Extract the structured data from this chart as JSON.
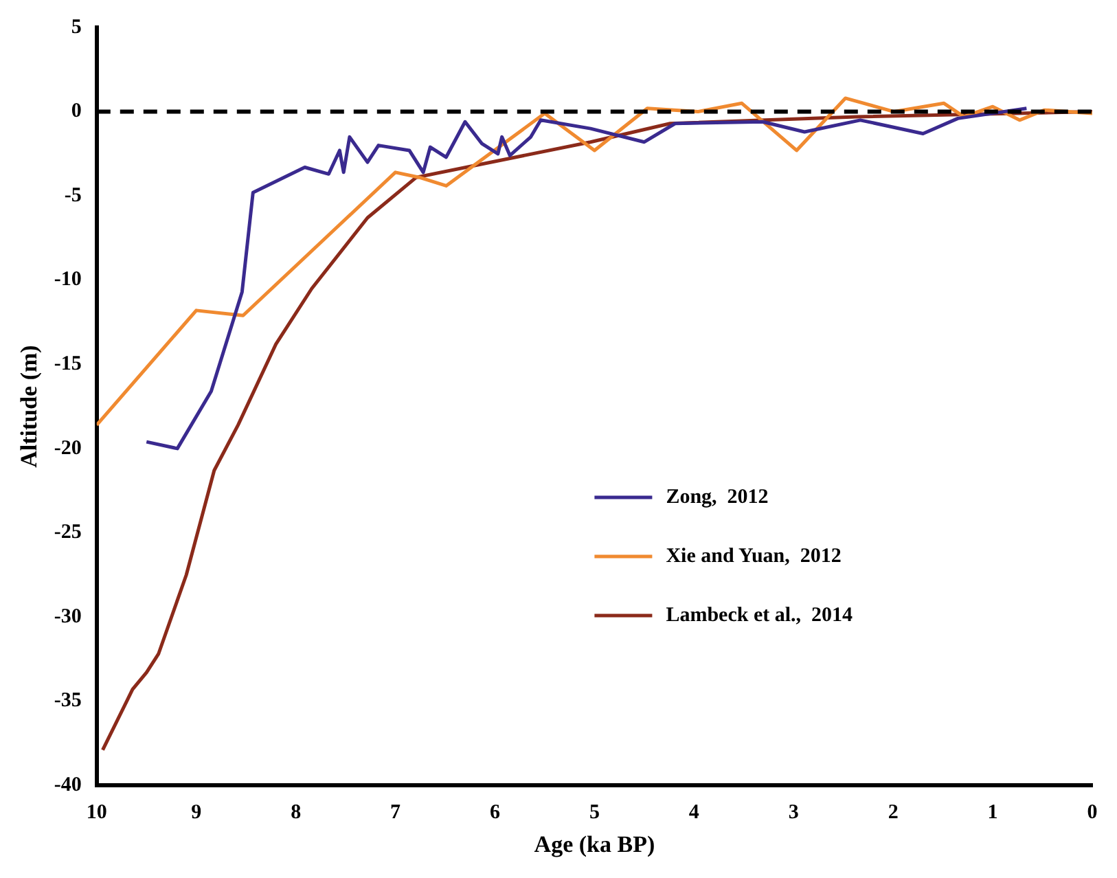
{
  "chart_data": {
    "type": "line",
    "xlabel": "Age (ka BP)",
    "ylabel": "Altitude (m)",
    "xlim": [
      10,
      0
    ],
    "ylim": [
      -40,
      5
    ],
    "xticks": [
      10,
      9,
      8,
      7,
      6,
      5,
      4,
      3,
      2,
      1,
      0
    ],
    "yticks": [
      5,
      0,
      -5,
      -10,
      -15,
      -20,
      -25,
      -30,
      -35,
      -40
    ],
    "grid": false,
    "legend": "right",
    "marker": "none",
    "line_style": "solid",
    "ref_lines": [
      {
        "axis": "y",
        "value": 0,
        "color": "#000000",
        "line_style": "dashed"
      }
    ],
    "series": [
      {
        "name": "Zong,  2012",
        "color": "#3a2a8f",
        "x": [
          9.5,
          9.19,
          8.85,
          8.54,
          8.43,
          7.91,
          7.67,
          7.56,
          7.52,
          7.46,
          7.28,
          7.17,
          6.86,
          6.72,
          6.65,
          6.49,
          6.3,
          6.13,
          5.97,
          5.93,
          5.85,
          5.64,
          5.54,
          5.04,
          4.5,
          4.19,
          3.31,
          2.89,
          2.33,
          1.7,
          1.35,
          0.66
        ],
        "values": [
          -19.6,
          -20,
          -16.6,
          -10.7,
          -4.8,
          -3.3,
          -3.7,
          -2.3,
          -3.6,
          -1.5,
          -3,
          -2,
          -2.3,
          -3.6,
          -2.1,
          -2.7,
          -0.6,
          -1.9,
          -2.5,
          -1.5,
          -2.6,
          -1.5,
          -0.5,
          -1,
          -1.8,
          -0.7,
          -0.6,
          -1.2,
          -0.5,
          -1.3,
          -0.4,
          0.2
        ]
      },
      {
        "name": "Xie and Yuan,  2012",
        "color": "#f08a30",
        "x": [
          10,
          9,
          8.53,
          7,
          6.76,
          6.49,
          5.5,
          5,
          4.47,
          3.96,
          3.52,
          2.97,
          2.48,
          1.99,
          1.49,
          1.29,
          1,
          0.73,
          0.48,
          0
        ],
        "values": [
          -18.6,
          -11.8,
          -12.1,
          -3.6,
          -3.9,
          -4.4,
          -0.1,
          -2.3,
          0.2,
          0,
          0.5,
          -2.3,
          0.8,
          0,
          0.5,
          -0.3,
          0.3,
          -0.5,
          0.1,
          -0.1
        ]
      },
      {
        "name": "Lambeck et al.,  2014",
        "color": "#8b2a1a",
        "x": [
          9.94,
          9.64,
          9.5,
          9.38,
          9.1,
          8.82,
          8.58,
          8.2,
          7.84,
          7.28,
          6.79,
          5.04,
          4.24,
          2.37,
          0
        ],
        "values": [
          -37.9,
          -34.3,
          -33.3,
          -32.2,
          -27.5,
          -21.3,
          -18.6,
          -13.8,
          -10.5,
          -6.3,
          -3.9,
          -1.8,
          -0.7,
          -0.3,
          0
        ]
      }
    ]
  }
}
